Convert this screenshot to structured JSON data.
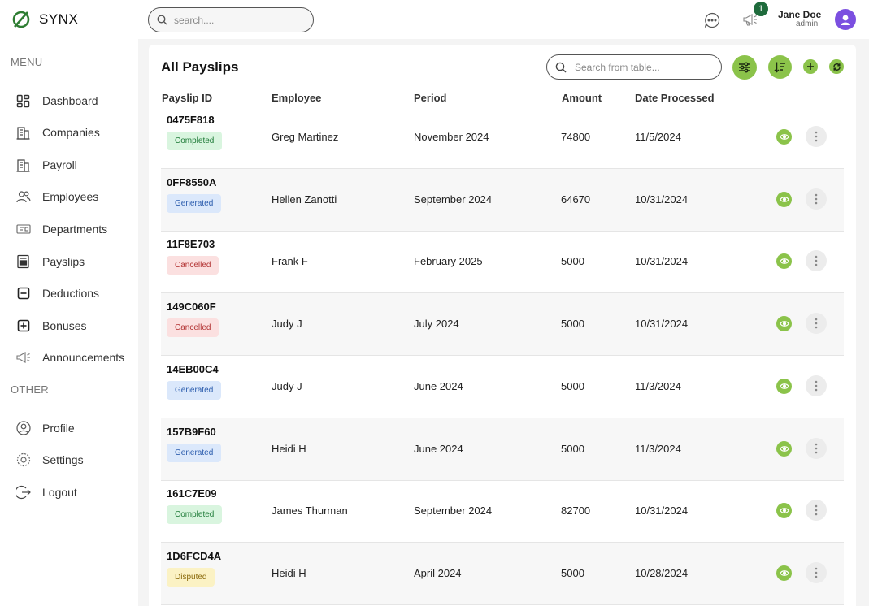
{
  "app": {
    "name": "SYNX"
  },
  "sidebar": {
    "menu_label": "MENU",
    "other_label": "OTHER",
    "items": [
      {
        "label": "Dashboard",
        "icon": "dashboard-icon"
      },
      {
        "label": "Companies",
        "icon": "building-icon"
      },
      {
        "label": "Payroll",
        "icon": "building-icon"
      },
      {
        "label": "Employees",
        "icon": "users-icon"
      },
      {
        "label": "Departments",
        "icon": "department-icon"
      },
      {
        "label": "Payslips",
        "icon": "payslip-icon"
      },
      {
        "label": "Deductions",
        "icon": "minus-square-icon"
      },
      {
        "label": "Bonuses",
        "icon": "plus-square-icon"
      },
      {
        "label": "Announcements",
        "icon": "megaphone-icon"
      }
    ],
    "other_items": [
      {
        "label": "Profile",
        "icon": "profile-icon"
      },
      {
        "label": "Settings",
        "icon": "settings-icon"
      },
      {
        "label": "Logout",
        "icon": "logout-icon"
      }
    ]
  },
  "topbar": {
    "search_placeholder": "search....",
    "notification_count": "1",
    "user_name": "Jane Doe",
    "user_role": "admin"
  },
  "page": {
    "title": "All Payslips",
    "table_search_placeholder": "Search from table...",
    "columns": [
      "Payslip ID",
      "Employee",
      "Period",
      "Amount",
      "Date Processed"
    ],
    "rows": [
      {
        "id": "0475F818",
        "status": "Completed",
        "status_key": "completed",
        "employee": "Greg Martinez",
        "period": "November 2024",
        "amount": "74800",
        "date": "11/5/2024"
      },
      {
        "id": "0FF8550A",
        "status": "Generated",
        "status_key": "generated",
        "employee": "Hellen Zanotti",
        "period": "September 2024",
        "amount": "64670",
        "date": "10/31/2024"
      },
      {
        "id": "11F8E703",
        "status": "Cancelled",
        "status_key": "cancelled",
        "employee": "Frank F",
        "period": "February 2025",
        "amount": "5000",
        "date": "10/31/2024"
      },
      {
        "id": "149C060F",
        "status": "Cancelled",
        "status_key": "cancelled",
        "employee": "Judy J",
        "period": "July 2024",
        "amount": "5000",
        "date": "10/31/2024"
      },
      {
        "id": "14EB00C4",
        "status": "Generated",
        "status_key": "generated",
        "employee": "Judy J",
        "period": "June 2024",
        "amount": "5000",
        "date": "11/3/2024"
      },
      {
        "id": "157B9F60",
        "status": "Generated",
        "status_key": "generated",
        "employee": "Heidi H",
        "period": "June 2024",
        "amount": "5000",
        "date": "11/3/2024"
      },
      {
        "id": "161C7E09",
        "status": "Completed",
        "status_key": "completed",
        "employee": "James Thurman",
        "period": "September 2024",
        "amount": "82700",
        "date": "10/31/2024"
      },
      {
        "id": "1D6FCD4A",
        "status": "Disputed",
        "status_key": "disputed",
        "employee": "Heidi H",
        "period": "April 2024",
        "amount": "5000",
        "date": "10/28/2024"
      }
    ]
  },
  "colors": {
    "accent": "#8bc34a",
    "badge_green": "#1f6b3c",
    "avatar": "#7b4fe0"
  }
}
